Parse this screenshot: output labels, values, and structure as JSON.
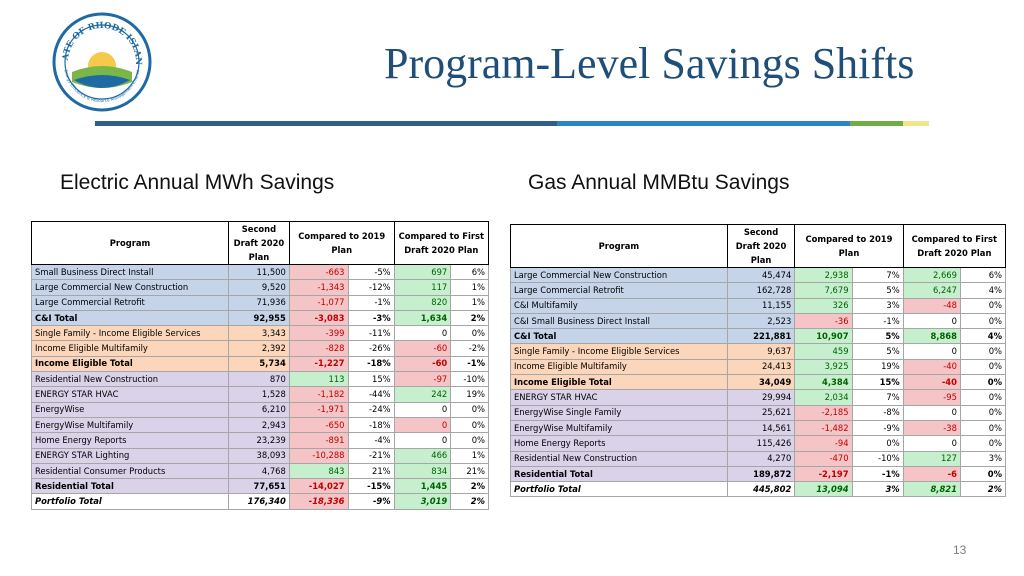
{
  "title": "Program-Level Savings Shifts",
  "seal_top_text": "STATE OF RHODE ISLAND",
  "seal_bottom_text": "Energy Efficiency & Resource Management Council",
  "page_number": "13",
  "colors": {
    "title": "#1f4e79",
    "rule_dark": "#2e5f8a",
    "rule_blue": "#2e86c1",
    "rule_green": "#70ad47",
    "rule_yellow": "#f0e68c"
  },
  "electric": {
    "heading": "Electric Annual MWh Savings",
    "headers": [
      "Program",
      "Second Draft 2020 Plan",
      "Compared to 2019 Plan",
      "",
      "Compared to First Draft 2020 Plan",
      ""
    ],
    "rows": [
      {
        "name": "Small Business Direct Install",
        "val": "11,500",
        "d19": "-663",
        "p19": "-5%",
        "dfd": "697",
        "pfd": "6%",
        "grp": "blue",
        "s19": "neg",
        "sfd": "pos",
        "style": ""
      },
      {
        "name": "Large Commercial New Construction",
        "val": "9,520",
        "d19": "-1,343",
        "p19": "-12%",
        "dfd": "117",
        "pfd": "1%",
        "grp": "blue",
        "s19": "neg",
        "sfd": "pos",
        "style": ""
      },
      {
        "name": "Large Commercial Retrofit",
        "val": "71,936",
        "d19": "-1,077",
        "p19": "-1%",
        "dfd": "820",
        "pfd": "1%",
        "grp": "blue",
        "s19": "neg",
        "sfd": "pos",
        "style": ""
      },
      {
        "name": "C&I Total",
        "val": "92,955",
        "d19": "-3,083",
        "p19": "-3%",
        "dfd": "1,634",
        "pfd": "2%",
        "grp": "blue",
        "s19": "neg",
        "sfd": "pos",
        "style": "bold"
      },
      {
        "name": "Single Family - Income Eligible Services",
        "val": "3,343",
        "d19": "-399",
        "p19": "-11%",
        "dfd": "0",
        "pfd": "0%",
        "grp": "peach",
        "s19": "neg",
        "sfd": "w",
        "style": ""
      },
      {
        "name": "Income Eligible Multifamily",
        "val": "2,392",
        "d19": "-828",
        "p19": "-26%",
        "dfd": "-60",
        "pfd": "-2%",
        "grp": "peach",
        "s19": "neg",
        "sfd": "neg",
        "style": ""
      },
      {
        "name": "Income Eligible Total",
        "val": "5,734",
        "d19": "-1,227",
        "p19": "-18%",
        "dfd": "-60",
        "pfd": "-1%",
        "grp": "peach",
        "s19": "neg",
        "sfd": "neg",
        "style": "bold"
      },
      {
        "name": "Residential New Construction",
        "val": "870",
        "d19": "113",
        "p19": "15%",
        "dfd": "-97",
        "pfd": "-10%",
        "grp": "purple",
        "s19": "pos",
        "sfd": "neg",
        "style": ""
      },
      {
        "name": "ENERGY STAR HVAC",
        "val": "1,528",
        "d19": "-1,182",
        "p19": "-44%",
        "dfd": "242",
        "pfd": "19%",
        "grp": "purple",
        "s19": "neg",
        "sfd": "pos",
        "style": ""
      },
      {
        "name": "EnergyWise",
        "val": "6,210",
        "d19": "-1,971",
        "p19": "-24%",
        "dfd": "0",
        "pfd": "0%",
        "grp": "purple",
        "s19": "neg",
        "sfd": "w",
        "style": ""
      },
      {
        "name": "EnergyWise Multifamily",
        "val": "2,943",
        "d19": "-650",
        "p19": "-18%",
        "dfd": "0",
        "pfd": "0%",
        "grp": "purple",
        "s19": "neg",
        "sfd": "neg",
        "style": ""
      },
      {
        "name": "Home Energy Reports",
        "val": "23,239",
        "d19": "-891",
        "p19": "-4%",
        "dfd": "0",
        "pfd": "0%",
        "grp": "purple",
        "s19": "neg",
        "sfd": "w",
        "style": ""
      },
      {
        "name": "ENERGY STAR Lighting",
        "val": "38,093",
        "d19": "-10,288",
        "p19": "-21%",
        "dfd": "466",
        "pfd": "1%",
        "grp": "purple",
        "s19": "neg",
        "sfd": "pos",
        "style": ""
      },
      {
        "name": "Residential Consumer Products",
        "val": "4,768",
        "d19": "843",
        "p19": "21%",
        "dfd": "834",
        "pfd": "21%",
        "grp": "purple",
        "s19": "pos",
        "sfd": "pos",
        "style": ""
      },
      {
        "name": "Residential Total",
        "val": "77,651",
        "d19": "-14,027",
        "p19": "-15%",
        "dfd": "1,445",
        "pfd": "2%",
        "grp": "purple",
        "s19": "neg",
        "sfd": "pos",
        "style": "bold"
      },
      {
        "name": "Portfolio Total",
        "val": "176,340",
        "d19": "-18,336",
        "p19": "-9%",
        "dfd": "3,019",
        "pfd": "2%",
        "grp": "white",
        "s19": "neg",
        "sfd": "pos",
        "style": "ital"
      }
    ]
  },
  "gas": {
    "heading": "Gas Annual MMBtu Savings",
    "headers": [
      "Program",
      "Second Draft 2020 Plan",
      "Compared to 2019 Plan",
      "",
      "Compared to First Draft 2020 Plan",
      ""
    ],
    "rows": [
      {
        "name": "Large Commercial New Construction",
        "val": "45,474",
        "d19": "2,938",
        "p19": "7%",
        "dfd": "2,669",
        "pfd": "6%",
        "grp": "blue",
        "s19": "pos",
        "sfd": "pos",
        "style": ""
      },
      {
        "name": "Large Commercial Retrofit",
        "val": "162,728",
        "d19": "7,679",
        "p19": "5%",
        "dfd": "6,247",
        "pfd": "4%",
        "grp": "blue",
        "s19": "pos",
        "sfd": "pos",
        "style": ""
      },
      {
        "name": "C&I Multifamily",
        "val": "11,155",
        "d19": "326",
        "p19": "3%",
        "dfd": "-48",
        "pfd": "0%",
        "grp": "blue",
        "s19": "pos",
        "sfd": "neg",
        "style": ""
      },
      {
        "name": "C&I Small Business Direct Install",
        "val": "2,523",
        "d19": "-36",
        "p19": "-1%",
        "dfd": "0",
        "pfd": "0%",
        "grp": "blue",
        "s19": "neg",
        "sfd": "w",
        "style": ""
      },
      {
        "name": "C&I Total",
        "val": "221,881",
        "d19": "10,907",
        "p19": "5%",
        "dfd": "8,868",
        "pfd": "4%",
        "grp": "blue",
        "s19": "pos",
        "sfd": "pos",
        "style": "bold"
      },
      {
        "name": "Single Family - Income Eligible Services",
        "val": "9,637",
        "d19": "459",
        "p19": "5%",
        "dfd": "0",
        "pfd": "0%",
        "grp": "peach",
        "s19": "pos",
        "sfd": "w",
        "style": ""
      },
      {
        "name": "Income Eligible Multifamily",
        "val": "24,413",
        "d19": "3,925",
        "p19": "19%",
        "dfd": "-40",
        "pfd": "0%",
        "grp": "peach",
        "s19": "pos",
        "sfd": "neg",
        "style": ""
      },
      {
        "name": "Income Eligible Total",
        "val": "34,049",
        "d19": "4,384",
        "p19": "15%",
        "dfd": "-40",
        "pfd": "0%",
        "grp": "peach",
        "s19": "pos",
        "sfd": "neg",
        "style": "bold"
      },
      {
        "name": "ENERGY STAR HVAC",
        "val": "29,994",
        "d19": "2,034",
        "p19": "7%",
        "dfd": "-95",
        "pfd": "0%",
        "grp": "purple",
        "s19": "pos",
        "sfd": "neg",
        "style": ""
      },
      {
        "name": "EnergyWise Single Family",
        "val": "25,621",
        "d19": "-2,185",
        "p19": "-8%",
        "dfd": "0",
        "pfd": "0%",
        "grp": "purple",
        "s19": "neg",
        "sfd": "w",
        "style": ""
      },
      {
        "name": "EnergyWise Multifamily",
        "val": "14,561",
        "d19": "-1,482",
        "p19": "-9%",
        "dfd": "-38",
        "pfd": "0%",
        "grp": "purple",
        "s19": "neg",
        "sfd": "neg",
        "style": ""
      },
      {
        "name": "Home Energy Reports",
        "val": "115,426",
        "d19": "-94",
        "p19": "0%",
        "dfd": "0",
        "pfd": "0%",
        "grp": "purple",
        "s19": "neg",
        "sfd": "w",
        "style": ""
      },
      {
        "name": "Residential New Construction",
        "val": "4,270",
        "d19": "-470",
        "p19": "-10%",
        "dfd": "127",
        "pfd": "3%",
        "grp": "purple",
        "s19": "neg",
        "sfd": "pos",
        "style": ""
      },
      {
        "name": "Residential Total",
        "val": "189,872",
        "d19": "-2,197",
        "p19": "-1%",
        "dfd": "-6",
        "pfd": "0%",
        "grp": "purple",
        "s19": "neg",
        "sfd": "neg",
        "style": "bold"
      },
      {
        "name": "Portfolio Total",
        "val": "445,802",
        "d19": "13,094",
        "p19": "3%",
        "dfd": "8,821",
        "pfd": "2%",
        "grp": "white",
        "s19": "pos",
        "sfd": "pos",
        "style": "ital"
      }
    ]
  }
}
